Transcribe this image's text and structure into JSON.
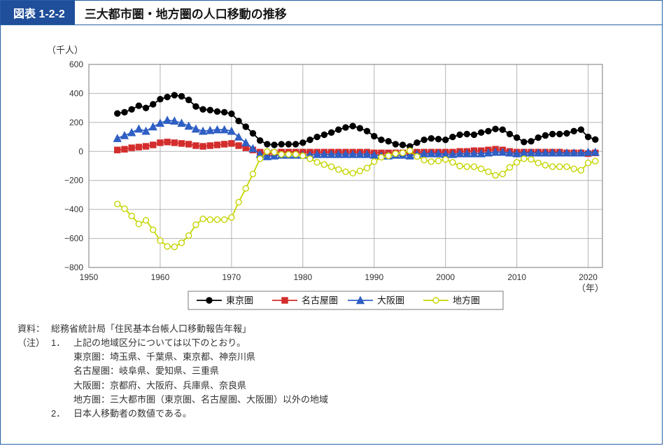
{
  "figure_label": "図表 1-2-2",
  "figure_title": "三大都市圏・地方圏の人口移動の推移",
  "chart": {
    "type": "line",
    "y_axis": {
      "title": "（千人）",
      "lim": [
        -800,
        600
      ],
      "tick_step": 200,
      "ticks": [
        -800,
        -600,
        -400,
        -200,
        0,
        200,
        400,
        600
      ],
      "title_fontsize": 13,
      "tick_fontsize": 12
    },
    "x_axis": {
      "title": "（年）",
      "lim": [
        1950,
        2022
      ],
      "ticks": [
        1950,
        1960,
        1970,
        1980,
        1990,
        2000,
        2010,
        2020
      ],
      "title_fontsize": 13,
      "tick_fontsize": 12
    },
    "grid_color": "#b4b4b4",
    "plot_border_color": "#7a7a7a",
    "background_color": "#ffffff",
    "years": [
      1954,
      1955,
      1956,
      1957,
      1958,
      1959,
      1960,
      1961,
      1962,
      1963,
      1964,
      1965,
      1966,
      1967,
      1968,
      1969,
      1970,
      1971,
      1972,
      1973,
      1974,
      1975,
      1976,
      1977,
      1978,
      1979,
      1980,
      1981,
      1982,
      1983,
      1984,
      1985,
      1986,
      1987,
      1988,
      1989,
      1990,
      1991,
      1992,
      1993,
      1994,
      1995,
      1996,
      1997,
      1998,
      1999,
      2000,
      2001,
      2002,
      2003,
      2004,
      2005,
      2006,
      2007,
      2008,
      2009,
      2010,
      2011,
      2012,
      2013,
      2014,
      2015,
      2016,
      2017,
      2018,
      2019,
      2020,
      2021
    ],
    "series": [
      {
        "name": "東京圏",
        "color": "#000000",
        "marker": "circle",
        "marker_fill": "#000000",
        "marker_size": 4,
        "line_width": 1.8,
        "values": [
          262,
          270,
          290,
          315,
          300,
          325,
          360,
          375,
          388,
          380,
          355,
          310,
          290,
          285,
          275,
          270,
          260,
          210,
          170,
          125,
          75,
          50,
          45,
          50,
          50,
          50,
          60,
          80,
          100,
          115,
          130,
          150,
          165,
          175,
          160,
          140,
          105,
          80,
          70,
          50,
          45,
          35,
          60,
          80,
          90,
          85,
          80,
          100,
          115,
          120,
          115,
          130,
          140,
          155,
          150,
          120,
          95,
          65,
          70,
          95,
          110,
          120,
          120,
          125,
          140,
          150,
          100,
          82
        ]
      },
      {
        "name": "名古屋圏",
        "color": "#d42d2d",
        "marker": "square",
        "marker_fill": "#d42d2d",
        "marker_size": 4,
        "line_width": 1.8,
        "values": [
          10,
          15,
          25,
          30,
          35,
          45,
          60,
          65,
          60,
          55,
          50,
          40,
          35,
          40,
          45,
          50,
          55,
          40,
          25,
          10,
          -5,
          -15,
          -10,
          -5,
          -5,
          -5,
          -5,
          -5,
          -5,
          -5,
          -5,
          -5,
          -5,
          -5,
          -5,
          -5,
          -10,
          -10,
          -10,
          -10,
          -10,
          -10,
          -5,
          -5,
          -5,
          -5,
          -5,
          -5,
          0,
          0,
          5,
          5,
          10,
          15,
          10,
          0,
          -5,
          -5,
          -5,
          -5,
          -5,
          -5,
          -5,
          -10,
          -10,
          -10,
          -15,
          -10
        ]
      },
      {
        "name": "大阪圏",
        "color": "#2f5fc4",
        "marker": "triangle",
        "marker_fill": "#2f5fc4",
        "marker_size": 5,
        "line_width": 1.8,
        "values": [
          90,
          110,
          130,
          155,
          140,
          170,
          195,
          215,
          210,
          195,
          175,
          155,
          140,
          145,
          150,
          150,
          140,
          100,
          60,
          20,
          -20,
          -35,
          -30,
          -25,
          -25,
          -25,
          -25,
          -25,
          -20,
          -20,
          -20,
          -20,
          -20,
          -20,
          -20,
          -20,
          -25,
          -30,
          -30,
          -25,
          -25,
          -30,
          -20,
          -15,
          -15,
          -15,
          -20,
          -20,
          -15,
          -15,
          -15,
          -15,
          -10,
          -5,
          -5,
          -10,
          -15,
          -10,
          -10,
          -10,
          -10,
          -10,
          -10,
          -10,
          -10,
          -10,
          -5,
          -5
        ]
      },
      {
        "name": "地方圏",
        "color": "#c5d500",
        "marker": "circle",
        "marker_fill": "#ffffff",
        "marker_size": 4,
        "line_width": 1.8,
        "values": [
          -362,
          -395,
          -445,
          -500,
          -475,
          -540,
          -615,
          -655,
          -658,
          -630,
          -580,
          -505,
          -465,
          -470,
          -470,
          -470,
          -455,
          -350,
          -255,
          -155,
          -50,
          0,
          -5,
          -20,
          -20,
          -20,
          -30,
          -50,
          -75,
          -90,
          -105,
          -125,
          -140,
          -150,
          -135,
          -115,
          -70,
          -40,
          -30,
          -15,
          -10,
          5,
          -35,
          -60,
          -70,
          -65,
          -55,
          -75,
          -100,
          -105,
          -105,
          -120,
          -140,
          -165,
          -155,
          -110,
          -75,
          -50,
          -55,
          -80,
          -95,
          -105,
          -105,
          -105,
          -120,
          -130,
          -80,
          -67
        ]
      }
    ],
    "legend": {
      "labels": [
        "東京圏",
        "名古屋圏",
        "大阪圏",
        "地方圏"
      ],
      "fontsize": 13,
      "border_color": "#7a7a7a",
      "background": "#ffffff"
    }
  },
  "notes": {
    "source_label": "資料：",
    "source_text": "総務省統計局「住民基本台帳人口移動報告年報」",
    "note_label": "（注）",
    "note1_num": "1．",
    "note1_line1": "上記の地域区分については以下のとおり。",
    "note1_line2": "東京圏：埼玉県、千葉県、東京都、神奈川県",
    "note1_line3": "名古屋圏：岐阜県、愛知県、三重県",
    "note1_line4": "大阪圏：京都府、大阪府、兵庫県、奈良県",
    "note1_line5": "地方圏：三大都市圏（東京圏、名古屋圏、大阪圏）以外の地域",
    "note2_num": "2．",
    "note2_text": "日本人移動者の数値である。"
  }
}
